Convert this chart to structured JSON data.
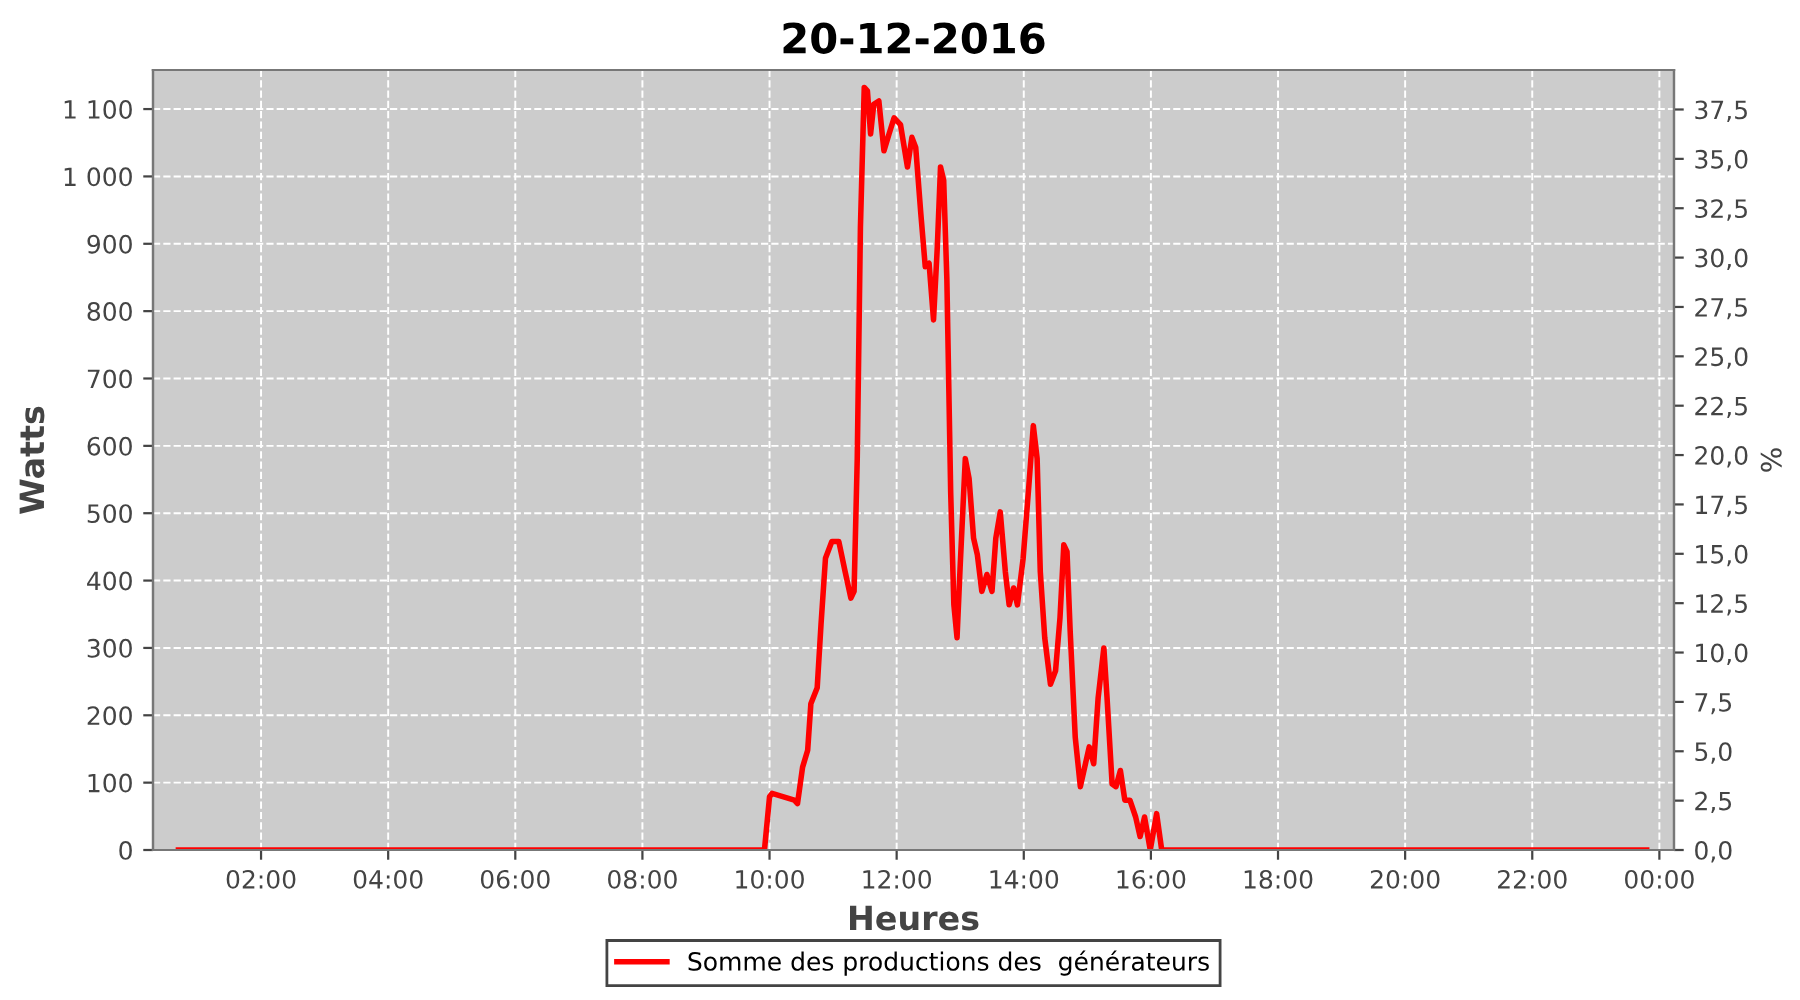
{
  "chart_data": {
    "type": "line",
    "title": "20-12-2016",
    "xlabel": "Heures",
    "ylabel": "Watts",
    "y2label": "%",
    "x": [
      0.7,
      3,
      6,
      9,
      9.92,
      10.0,
      10.04,
      10.39,
      10.44,
      10.52,
      10.6,
      10.65,
      10.75,
      10.81,
      10.88,
      10.98,
      11.09,
      11.19,
      11.28,
      11.33,
      11.38,
      11.43,
      11.49,
      11.54,
      11.59,
      11.64,
      11.72,
      11.8,
      11.88,
      11.96,
      12.06,
      12.17,
      12.24,
      12.3,
      12.38,
      12.45,
      12.51,
      12.58,
      12.64,
      12.69,
      12.74,
      12.79,
      12.85,
      12.9,
      12.95,
      13.0,
      13.08,
      13.14,
      13.21,
      13.27,
      13.34,
      13.42,
      13.5,
      13.56,
      13.63,
      13.71,
      13.77,
      13.84,
      13.9,
      13.99,
      14.08,
      14.15,
      14.21,
      14.26,
      14.33,
      14.42,
      14.5,
      14.57,
      14.63,
      14.68,
      14.73,
      14.81,
      14.89,
      14.97,
      15.03,
      15.1,
      15.17,
      15.26,
      15.31,
      15.39,
      15.45,
      15.52,
      15.59,
      15.67,
      15.76,
      15.83,
      15.9,
      15.99,
      16.09,
      16.17,
      18,
      21,
      23.8
    ],
    "series": [
      {
        "name": "Somme des productions des  générateurs",
        "color": "#ff0000",
        "values": [
          0,
          0,
          0,
          0,
          0,
          79,
          84,
          74,
          69,
          123,
          148,
          217,
          241,
          335,
          433,
          458,
          458,
          413,
          374,
          384,
          581,
          925,
          1132,
          1127,
          1063,
          1107,
          1112,
          1038,
          1063,
          1087,
          1077,
          1014,
          1058,
          1043,
          945,
          866,
          871,
          787,
          896,
          1014,
          994,
          847,
          531,
          364,
          315,
          423,
          581,
          551,
          463,
          438,
          384,
          409,
          384,
          463,
          502,
          413,
          364,
          389,
          364,
          433,
          541,
          630,
          581,
          413,
          315,
          246,
          266,
          345,
          453,
          443,
          325,
          167,
          94,
          128,
          153,
          128,
          226,
          300,
          226,
          98,
          94,
          118,
          74,
          74,
          49,
          20,
          49,
          0,
          54,
          0,
          0,
          0,
          0
        ]
      }
    ],
    "xlim": [
      0.3,
      24.23
    ],
    "xticks": [
      {
        "value": 2,
        "label": "02:00"
      },
      {
        "value": 4,
        "label": "04:00"
      },
      {
        "value": 6,
        "label": "06:00"
      },
      {
        "value": 8,
        "label": "08:00"
      },
      {
        "value": 10,
        "label": "10:00"
      },
      {
        "value": 12,
        "label": "12:00"
      },
      {
        "value": 14,
        "label": "14:00"
      },
      {
        "value": 16,
        "label": "16:00"
      },
      {
        "value": 18,
        "label": "18:00"
      },
      {
        "value": 20,
        "label": "20:00"
      },
      {
        "value": 22,
        "label": "22:00"
      },
      {
        "value": 24,
        "label": "00:00"
      }
    ],
    "ylim": [
      0,
      1158
    ],
    "yticks": [
      0,
      100,
      200,
      300,
      400,
      500,
      600,
      700,
      800,
      900,
      {
        "value": 1000,
        "label": "1 000"
      },
      {
        "value": 1100,
        "label": "1 100"
      }
    ],
    "y2lim": [
      0,
      39.5
    ],
    "y2ticks": [
      {
        "value": 0,
        "label": "0,0"
      },
      {
        "value": 2.5,
        "label": "2,5"
      },
      {
        "value": 5,
        "label": "5,0"
      },
      {
        "value": 7.5,
        "label": "7,5"
      },
      {
        "value": 10,
        "label": "10,0"
      },
      {
        "value": 12.5,
        "label": "12,5"
      },
      {
        "value": 15,
        "label": "15,0"
      },
      {
        "value": 17.5,
        "label": "17,5"
      },
      {
        "value": 20,
        "label": "20,0"
      },
      {
        "value": 22.5,
        "label": "22,5"
      },
      {
        "value": 25,
        "label": "25,0"
      },
      {
        "value": 27.5,
        "label": "27,5"
      },
      {
        "value": 30,
        "label": "30,0"
      },
      {
        "value": 32.5,
        "label": "32,5"
      },
      {
        "value": 35,
        "label": "35,0"
      },
      {
        "value": 37.5,
        "label": "37,5"
      }
    ],
    "grid": true,
    "legend": "bottom",
    "line_style": "solid"
  }
}
